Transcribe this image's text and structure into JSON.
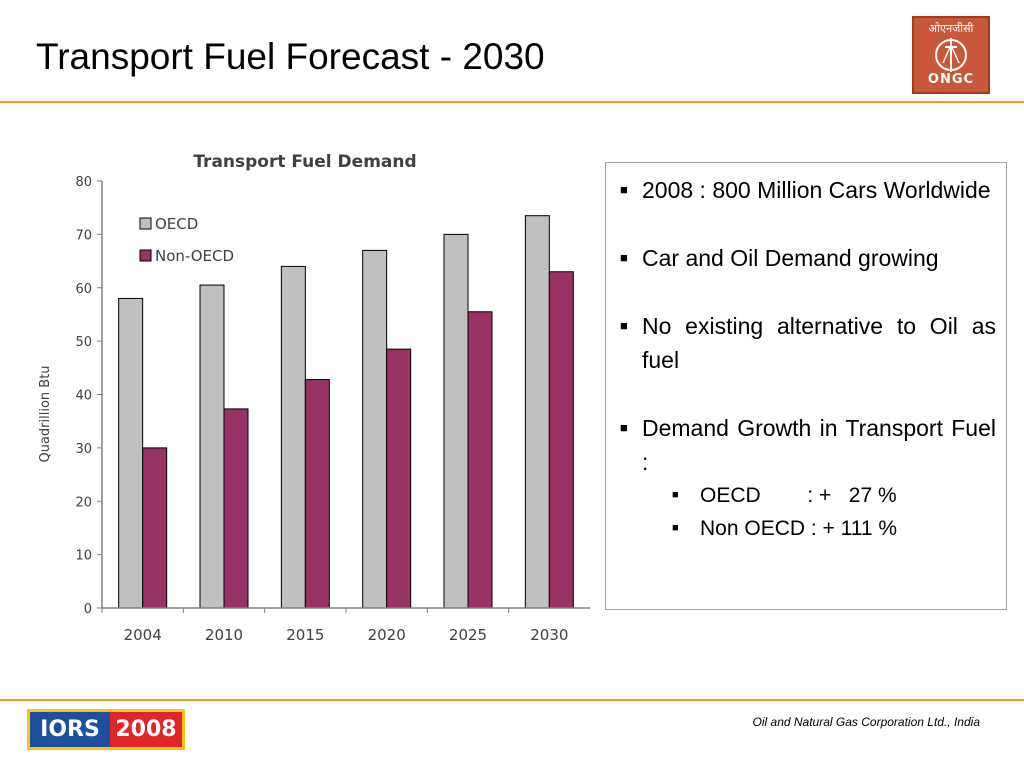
{
  "slide": {
    "title": "Transport Fuel Forecast - 2030",
    "footer_credit": "Oil and Natural Gas Corporation Ltd., India"
  },
  "logos": {
    "ongc": {
      "hindi": "ओएनजीसी",
      "brand": "ONGC"
    },
    "iors": {
      "left": "IORS",
      "right": "2008"
    }
  },
  "colors": {
    "accent_rule": "#f0a01e",
    "oecd_bar": "#c0c0c0",
    "non_oecd_bar": "#993366"
  },
  "bullets": [
    {
      "text": "2008 : 800 Million Cars Worldwide"
    },
    {
      "text": "Car and Oil Demand growing"
    },
    {
      "text": "No existing alternative to Oil as fuel"
    },
    {
      "text": "Demand Growth in Transport Fuel :",
      "sub": [
        {
          "label": "OECD        : +   27 %"
        },
        {
          "label": "Non OECD : + 111 %"
        }
      ]
    }
  ],
  "chart_data": {
    "type": "bar",
    "title": "Transport Fuel Demand",
    "ylabel": "Quadrillion Btu",
    "xlabel": "",
    "categories": [
      "2004",
      "2010",
      "2015",
      "2020",
      "2025",
      "2030"
    ],
    "series": [
      {
        "name": "OECD",
        "values": [
          58,
          60.5,
          64,
          67,
          70,
          73.5
        ],
        "color": "#c0c0c0"
      },
      {
        "name": "Non-OECD",
        "values": [
          30,
          37.3,
          42.8,
          48.5,
          55.5,
          63
        ],
        "color": "#993366"
      }
    ],
    "ylim": [
      0,
      80
    ],
    "yticks": [
      "0",
      "10",
      "20",
      "30",
      "40",
      "50",
      "60",
      "70",
      "80"
    ],
    "legend_position": "top-left",
    "grid": false
  }
}
